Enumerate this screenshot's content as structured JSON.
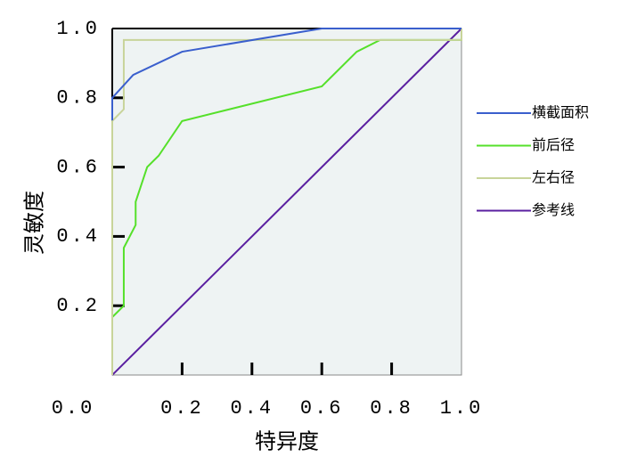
{
  "chart_data": {
    "type": "line",
    "x_label": "特异度",
    "y_label": "灵敏度",
    "xlim": [
      0,
      1
    ],
    "ylim": [
      0,
      1
    ],
    "xticks": [
      {
        "value": 0,
        "label": "0.0"
      },
      0.2,
      0.4,
      0.6,
      0.8,
      {
        "value": 1,
        "label": "1.0"
      }
    ],
    "yticks": [
      0.2,
      0.4,
      0.6,
      0.8,
      {
        "value": 1,
        "label": "1.0"
      }
    ],
    "series": [
      {
        "name": "横截面积",
        "color": "#3a5fcd",
        "x": [
          0,
          0,
          0.06,
          0.2,
          0.6,
          1
        ],
        "values": [
          0.735,
          0.8,
          0.866,
          0.933,
          1,
          1
        ]
      },
      {
        "name": "前后径",
        "color": "#55e02a",
        "x": [
          0,
          0.033,
          0.033,
          0.067,
          0.067,
          0.1,
          0.133,
          0.2,
          0.6,
          0.7,
          0.767,
          1,
          1
        ],
        "values": [
          0.167,
          0.2,
          0.367,
          0.433,
          0.5,
          0.6,
          0.633,
          0.733,
          0.833,
          0.933,
          0.967,
          0.967,
          1
        ]
      },
      {
        "name": "左右径",
        "color": "#c8d49a",
        "x": [
          0,
          0,
          0.033,
          0.033,
          1,
          1
        ],
        "values": [
          0,
          0.733,
          0.767,
          0.967,
          0.967,
          1
        ]
      },
      {
        "name": "参考线",
        "color": "#5a1fa0",
        "x": [
          0,
          1
        ],
        "values": [
          0,
          1
        ]
      }
    ]
  }
}
